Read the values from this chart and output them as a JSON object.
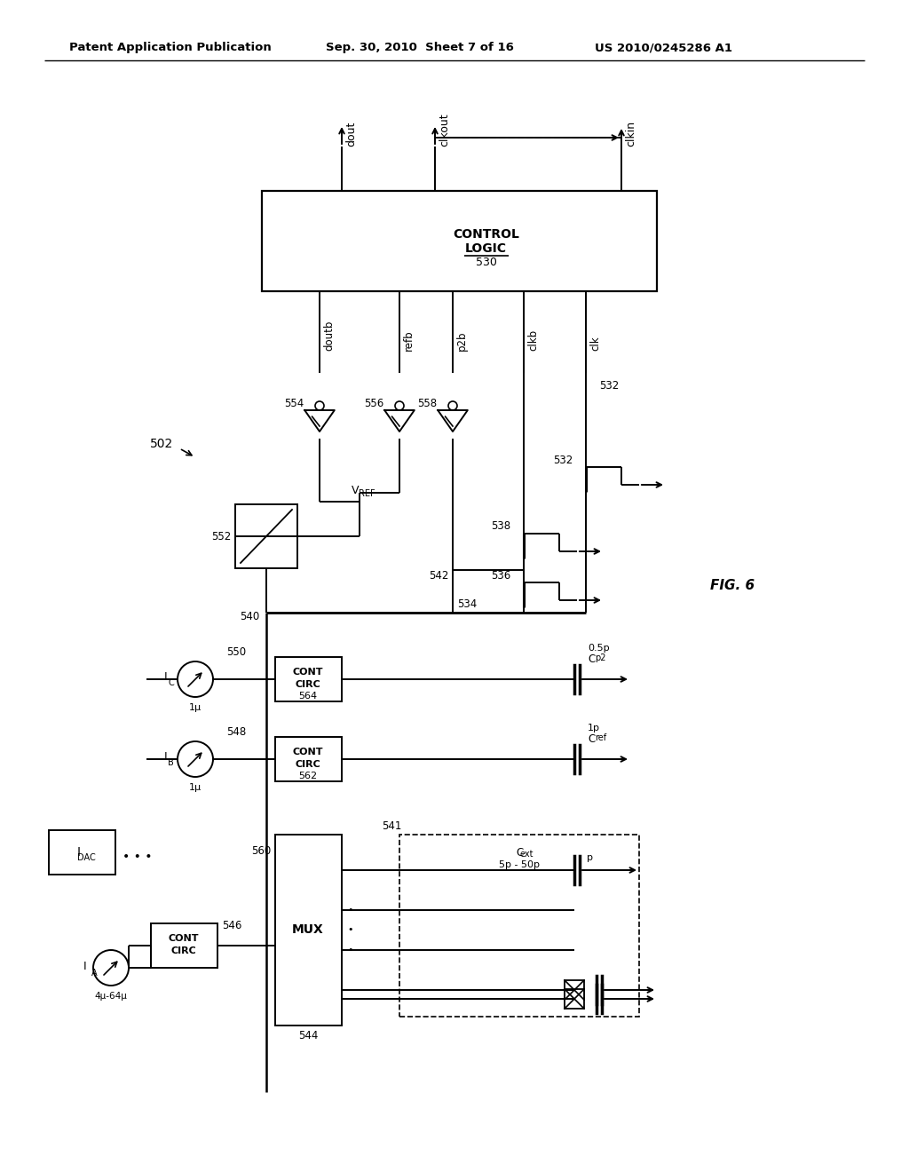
{
  "background_color": "#ffffff",
  "header_line1": "Patent Application Publication",
  "header_line2": "Sep. 30, 2010  Sheet 7 of 16",
  "header_line3": "US 2010/0245286 A1",
  "fig_label": "FIG. 6",
  "fig_number": "502"
}
